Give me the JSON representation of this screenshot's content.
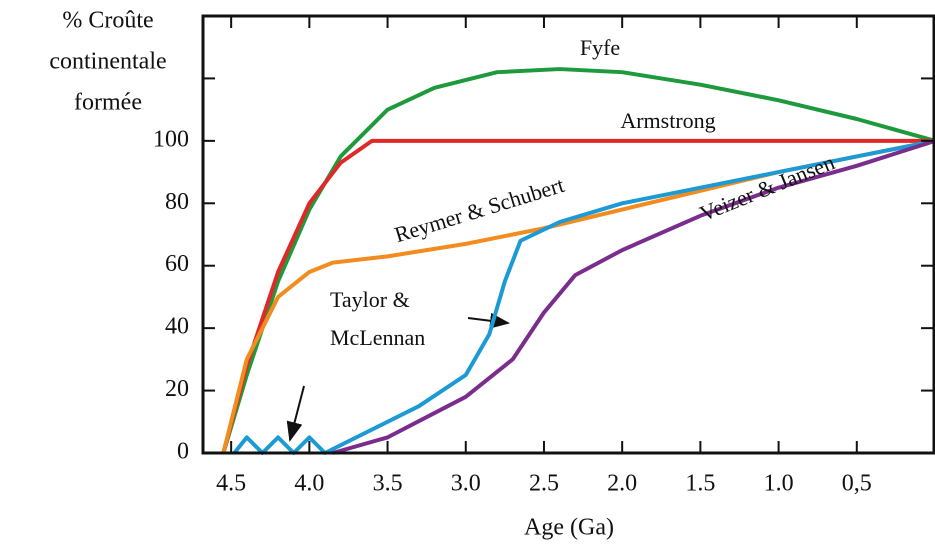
{
  "chart_data": {
    "type": "line",
    "y_label_lines": [
      "% Croûte",
      "continentale",
      "formée"
    ],
    "x_label": "Age (Ga)",
    "xlim": [
      4.68,
      0
    ],
    "xticks": [
      4.5,
      {
        "value": 4,
        "label": "4.0"
      },
      3.5,
      {
        "value": 3,
        "label": "3.0"
      },
      2.5,
      {
        "value": 2,
        "label": "2.0"
      },
      1.5,
      {
        "value": 1,
        "label": "1.0"
      },
      {
        "value": 0.5,
        "label": "0,5"
      }
    ],
    "ylim": [
      0,
      140
    ],
    "yticks": [
      0,
      20,
      40,
      60,
      80,
      100
    ],
    "yticks_unlabeled": [
      120
    ],
    "series": [
      {
        "name": "Fyfe",
        "color": "#1e9a3c",
        "x": [
          4.55,
          4.4,
          4.2,
          4.0,
          3.8,
          3.5,
          3.2,
          2.8,
          2.4,
          2.0,
          1.5,
          1.0,
          0.5,
          0
        ],
        "values": [
          0,
          25,
          55,
          78,
          95,
          110,
          117,
          122,
          123,
          122,
          118,
          113,
          107,
          100
        ]
      },
      {
        "name": "Armstrong",
        "color": "#e02828",
        "x": [
          4.55,
          4.4,
          4.2,
          4.0,
          3.8,
          3.6,
          3.0,
          2.0,
          1.0,
          0
        ],
        "values": [
          0,
          28,
          58,
          80,
          93,
          100,
          100,
          100,
          100,
          100
        ]
      },
      {
        "name": "Reymer & Schubert",
        "color": "#f28c1e",
        "x": [
          4.55,
          4.4,
          4.2,
          4.0,
          3.85,
          3.5,
          3.0,
          2.5,
          2.0,
          1.5,
          1.0,
          0.5,
          0
        ],
        "values": [
          0,
          30,
          50,
          58,
          61,
          63,
          67,
          72,
          78,
          84,
          90,
          95,
          100
        ]
      },
      {
        "name": "Taylor & McLennan",
        "color": "#1c9ad6",
        "x": [
          4.48,
          4.4,
          4.3,
          4.2,
          4.1,
          4.0,
          3.9,
          3.7,
          3.3,
          3.0,
          2.85,
          2.75,
          2.65,
          2.4,
          2.0,
          1.5,
          1.0,
          0.5,
          0
        ],
        "values": [
          0,
          5,
          0,
          5,
          0,
          5,
          0,
          5,
          15,
          25,
          38,
          55,
          68,
          74,
          80,
          85,
          90,
          95,
          100
        ]
      },
      {
        "name": "Veizer & Jansen",
        "color": "#7b2d8e",
        "x": [
          3.85,
          3.5,
          3.0,
          2.7,
          2.5,
          2.3,
          2.0,
          1.5,
          1.0,
          0.5,
          0
        ],
        "values": [
          0,
          5,
          18,
          30,
          45,
          57,
          65,
          76,
          85,
          92,
          100
        ]
      }
    ]
  }
}
